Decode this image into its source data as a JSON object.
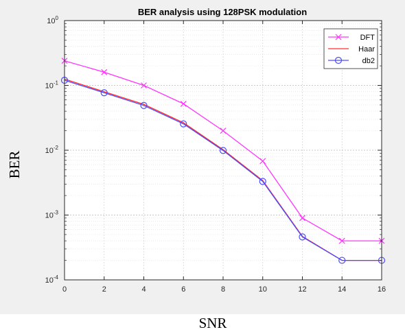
{
  "chart_data": {
    "type": "line",
    "title": "BER analysis using 128PSK modulation",
    "xlabel": "SNR",
    "ylabel": "BER",
    "x": [
      0,
      2,
      4,
      6,
      8,
      10,
      12,
      14,
      16
    ],
    "xlim": [
      0,
      16
    ],
    "xticks": [
      "0",
      "2",
      "4",
      "6",
      "8",
      "10",
      "12",
      "14",
      "16"
    ],
    "ylim": [
      0.0001,
      1
    ],
    "yscale": "log",
    "yticks": [
      {
        "value": 1,
        "base": "10",
        "exp": "0"
      },
      {
        "value": 0.1,
        "base": "10",
        "exp": "-1"
      },
      {
        "value": 0.01,
        "base": "10",
        "exp": "-2"
      },
      {
        "value": 0.001,
        "base": "10",
        "exp": "-3"
      },
      {
        "value": 0.0001,
        "base": "10",
        "exp": "-4"
      }
    ],
    "grid": true,
    "legend_position": "top-right",
    "series": [
      {
        "name": "DFT",
        "color": "#ff33ff",
        "marker": "x",
        "values": [
          0.24,
          0.16,
          0.1,
          0.052,
          0.02,
          0.0068,
          0.0009,
          0.0004,
          0.0004
        ]
      },
      {
        "name": "Haar",
        "color": "#ff2a2a",
        "marker": "none",
        "values": [
          0.125,
          0.08,
          0.051,
          0.0265,
          0.0102,
          0.0034,
          0.00047,
          0.0002,
          0.0002
        ]
      },
      {
        "name": "db2",
        "color": "#4a4aff",
        "marker": "o",
        "values": [
          0.12,
          0.077,
          0.049,
          0.0255,
          0.0099,
          0.0033,
          0.00046,
          0.0002,
          0.0002
        ]
      }
    ]
  }
}
